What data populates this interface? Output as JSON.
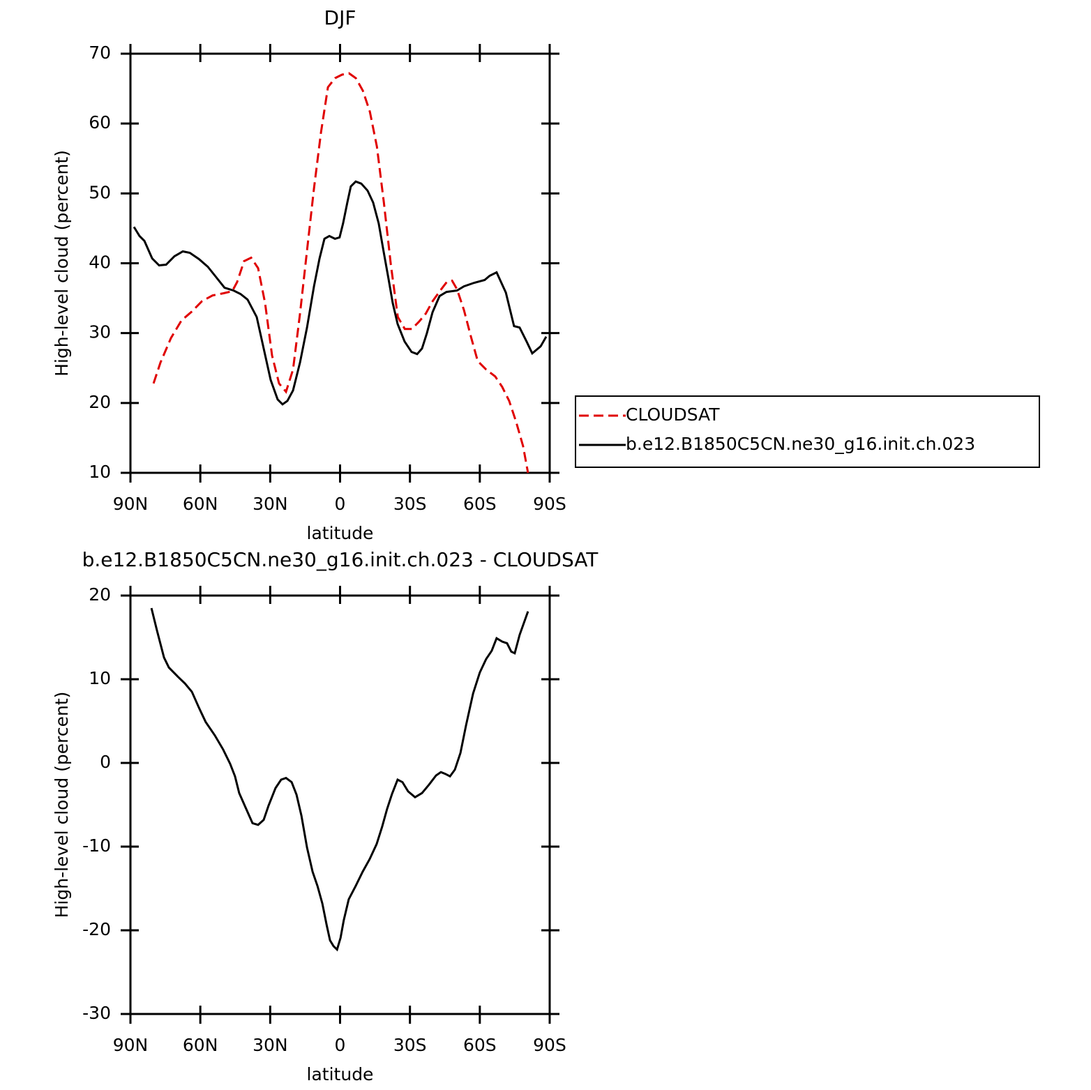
{
  "chart_data": [
    {
      "type": "line",
      "title": "DJF",
      "xlabel": "latitude",
      "ylabel": "High-level cloud (percent)",
      "xlim": [
        90,
        -90
      ],
      "xticks": [
        {
          "value": 90,
          "label": "90N"
        },
        {
          "value": 60,
          "label": "60N"
        },
        {
          "value": 30,
          "label": "30N"
        },
        0,
        {
          "value": -30,
          "label": "30S"
        },
        {
          "value": -60,
          "label": "60S"
        },
        {
          "value": -90,
          "label": "90S"
        }
      ],
      "ylim": [
        10,
        70
      ],
      "yticks": [
        10,
        20,
        30,
        40,
        50,
        60,
        70
      ],
      "legend": "right",
      "series": [
        {
          "name": "CLOUDSAT",
          "color": "#e00000",
          "line_style": "dashed",
          "x": [
            80.1,
            77.1,
            72.6,
            68.1,
            63.6,
            59.2,
            54.7,
            50.2,
            46.3,
            44.2,
            41.2,
            38.2,
            35.2,
            32.2,
            29.2,
            26.2,
            23.2,
            20.2,
            17.2,
            14.2,
            11.2,
            8.2,
            5.2,
            2.2,
            -0.8,
            -3.8,
            -6.8,
            -9.8,
            -12.8,
            -15.8,
            -18.8,
            -21.8,
            -24.8,
            -27.8,
            -30.8,
            -33.8,
            -36.8,
            -39.8,
            -42.8,
            -45.8,
            -48.1,
            -50.2,
            -53.2,
            -56.2,
            -59.1,
            -62.7,
            -66.6,
            -69.6,
            -72.6,
            -75.6,
            -78.6,
            -80.7
          ],
          "values": [
            22.8,
            25.8,
            29.3,
            31.8,
            33.1,
            34.6,
            35.4,
            35.7,
            36.0,
            37.3,
            40.3,
            40.8,
            39.3,
            34.3,
            26.8,
            22.8,
            21.6,
            24.8,
            32.8,
            41.8,
            50.7,
            58.7,
            65.2,
            66.5,
            67.0,
            67.2,
            66.5,
            64.7,
            61.7,
            56.7,
            48.7,
            39.8,
            32.3,
            30.6,
            30.6,
            31.6,
            32.8,
            34.6,
            36.0,
            37.3,
            37.5,
            36.3,
            33.3,
            29.5,
            26.0,
            24.8,
            23.8,
            22.3,
            20.3,
            17.3,
            13.8,
            10.0
          ]
        },
        {
          "name": "b.e12.B1850C5CN.ne30_g16.init.ch.023",
          "color": "#000000",
          "line_style": "solid",
          "x": [
            88.5,
            86.1,
            84.0,
            80.7,
            77.7,
            74.7,
            71.1,
            67.5,
            64.5,
            60.6,
            56.8,
            53.2,
            49.6,
            45.7,
            42.7,
            39.7,
            35.8,
            32.8,
            29.8,
            26.8,
            24.7,
            22.6,
            20.2,
            17.2,
            14.2,
            11.2,
            8.8,
            6.7,
            4.6,
            2.2,
            0.2,
            -1.3,
            -3.1,
            -4.6,
            -6.7,
            -9.1,
            -11.8,
            -14.2,
            -16.6,
            -18.7,
            -20.8,
            -22.6,
            -24.7,
            -27.7,
            -30.7,
            -33.1,
            -35.2,
            -37.3,
            -39.7,
            -42.7,
            -45.7,
            -50.2,
            -53.2,
            -57.6,
            -62.1,
            -64.2,
            -67.2,
            -71.2,
            -74.7,
            -77.1,
            -80.1,
            -82.5,
            -86.1,
            -88.5
          ],
          "values": [
            45.2,
            43.9,
            43.2,
            40.7,
            39.7,
            39.8,
            41.0,
            41.7,
            41.5,
            40.6,
            39.5,
            38.0,
            36.5,
            36.1,
            35.6,
            34.8,
            32.3,
            27.8,
            23.3,
            20.5,
            19.8,
            20.3,
            21.8,
            25.8,
            30.8,
            36.7,
            40.7,
            43.5,
            43.9,
            43.5,
            43.7,
            45.7,
            48.7,
            51.0,
            51.7,
            51.4,
            50.4,
            48.7,
            45.7,
            41.7,
            37.8,
            34.3,
            31.3,
            28.8,
            27.3,
            27.0,
            27.8,
            30.0,
            33.0,
            35.3,
            35.9,
            36.1,
            36.7,
            37.2,
            37.6,
            38.2,
            38.7,
            35.8,
            31.0,
            30.8,
            28.8,
            27.1,
            28.1,
            29.5
          ]
        }
      ]
    },
    {
      "type": "line",
      "title": "b.e12.B1850C5CN.ne30_g16.init.ch.023 - CLOUDSAT",
      "xlabel": "latitude",
      "ylabel": "High-level cloud (percent)",
      "xlim": [
        90,
        -90
      ],
      "xticks": [
        {
          "value": 90,
          "label": "90N"
        },
        {
          "value": 60,
          "label": "60N"
        },
        {
          "value": 30,
          "label": "30N"
        },
        0,
        {
          "value": -30,
          "label": "30S"
        },
        {
          "value": -60,
          "label": "60S"
        },
        {
          "value": -90,
          "label": "90S"
        }
      ],
      "ylim": [
        -30,
        20
      ],
      "yticks": [
        -30,
        -20,
        -10,
        0,
        10,
        20
      ],
      "series": [
        {
          "color": "#000000",
          "line_style": "solid",
          "x": [
            81.0,
            78.6,
            75.6,
            73.5,
            69.6,
            66.6,
            63.6,
            60.6,
            57.7,
            53.8,
            50.2,
            47.2,
            45.1,
            43.3,
            40.6,
            37.6,
            35.2,
            32.8,
            30.7,
            27.7,
            25.3,
            23.2,
            20.8,
            18.7,
            16.6,
            14.2,
            11.8,
            9.7,
            7.6,
            5.8,
            4.3,
            2.8,
            1.3,
            -0.2,
            -1.6,
            -3.7,
            -6.7,
            -9.7,
            -12.7,
            -15.7,
            -18.1,
            -20.2,
            -22.3,
            -24.7,
            -26.8,
            -29.2,
            -32.2,
            -35.2,
            -38.2,
            -41.2,
            -43.3,
            -45.1,
            -47.2,
            -49.3,
            -51.7,
            -54.1,
            -57.1,
            -60.0,
            -62.7,
            -65.1,
            -67.2,
            -69.6,
            -71.7,
            -73.5,
            -75.0,
            -77.1,
            -80.7
          ],
          "values": [
            18.5,
            15.8,
            12.6,
            11.4,
            10.3,
            9.5,
            8.5,
            6.6,
            4.9,
            3.3,
            1.6,
            -0.1,
            -1.6,
            -3.6,
            -5.3,
            -7.2,
            -7.4,
            -6.8,
            -5.1,
            -3.0,
            -2.0,
            -1.8,
            -2.3,
            -3.8,
            -6.3,
            -10.1,
            -13.0,
            -14.7,
            -16.8,
            -19.3,
            -21.2,
            -21.9,
            -22.3,
            -20.9,
            -18.8,
            -16.3,
            -14.7,
            -13.0,
            -11.5,
            -9.7,
            -7.6,
            -5.5,
            -3.7,
            -2.0,
            -2.3,
            -3.4,
            -4.1,
            -3.6,
            -2.6,
            -1.5,
            -1.1,
            -1.3,
            -1.6,
            -0.8,
            1.2,
            4.5,
            8.3,
            10.8,
            12.4,
            13.4,
            14.9,
            14.5,
            14.3,
            13.3,
            13.1,
            15.3,
            18.1
          ]
        }
      ]
    }
  ]
}
